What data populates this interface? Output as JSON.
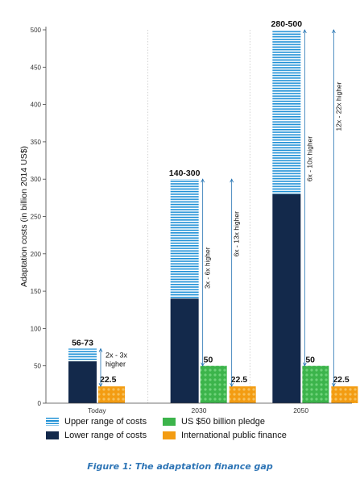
{
  "chart_data": {
    "type": "bar",
    "ylabel": "Adaptation costs (in billion 2014 US$)",
    "ylim": [
      0,
      500
    ],
    "yticks": [
      0,
      50,
      100,
      150,
      200,
      250,
      300,
      350,
      400,
      450,
      500
    ],
    "categories": [
      "Today",
      "2030",
      "2050"
    ],
    "series": [
      {
        "name": "Lower range of costs",
        "values": [
          56,
          140,
          280
        ],
        "color": "#13294b"
      },
      {
        "name": "Upper range of costs",
        "values": [
          73,
          300,
          500
        ],
        "color": "#1e90d6"
      },
      {
        "name": "US $50 billion pledge",
        "values": [
          null,
          50,
          50
        ],
        "color": "#3cb44b"
      },
      {
        "name": "International public finance",
        "values": [
          22.5,
          22.5,
          22.5
        ],
        "color": "#f39c12"
      }
    ],
    "range_labels": [
      "56-73",
      "140-300",
      "280-500"
    ],
    "pledge_labels": [
      "",
      "50",
      "50"
    ],
    "intl_labels": [
      "22.5",
      "22.5",
      "22.5"
    ],
    "annotations": [
      "2x - 3x higher",
      "3x - 6x higher",
      "6x - 13x higher",
      "6x - 10x higher",
      "12x - 22x higher"
    ],
    "grid": "vertical separators",
    "legend_position": "bottom"
  },
  "caption": "Figure 1: The adaptation finance gap"
}
